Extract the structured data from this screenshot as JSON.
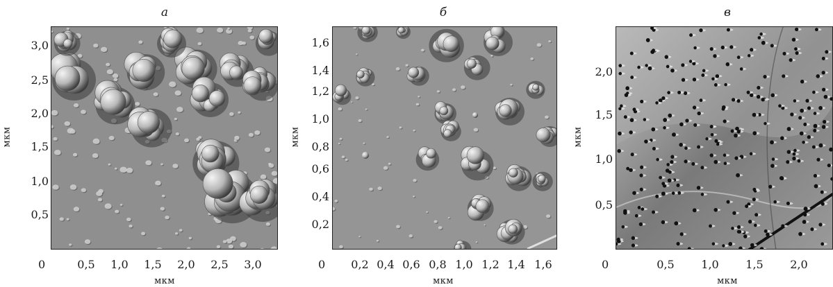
{
  "panels": [
    {
      "id": "a",
      "title": "а",
      "xlabel": "мкм",
      "ylabel": "мкм",
      "x_ticks": [
        "0,5",
        "1,0",
        "1,5",
        "2,0",
        "2,5",
        "3,0"
      ],
      "y_ticks": [
        "3,0",
        "2,5",
        "2,0",
        "1,5",
        "1,0",
        "0,5"
      ],
      "origin_label": "0"
    },
    {
      "id": "b",
      "title": "б",
      "xlabel": "мкм",
      "ylabel": "мкм",
      "x_ticks": [
        "0,2",
        "0,4",
        "0,6",
        "0,8",
        "1,0",
        "1,2",
        "1,4",
        "1,6"
      ],
      "y_ticks": [
        "1,6",
        "1,4",
        "1,2",
        "1,0",
        "0,8",
        "0,6",
        "0,4",
        "0,2"
      ],
      "origin_label": "0"
    },
    {
      "id": "c",
      "title": "в",
      "xlabel": "мкм",
      "ylabel": "мкм",
      "x_ticks": [
        "0,5",
        "1,0",
        "1,5",
        "2,0"
      ],
      "y_ticks": [
        "2,0",
        "1,5",
        "1,0",
        "0,5"
      ],
      "origin_label": "0"
    }
  ],
  "colors": {
    "surface_gray": "#8f8f8f",
    "highlight": "#f4f4f4",
    "shadow": "#3a3a3a",
    "pore": "#111111"
  }
}
